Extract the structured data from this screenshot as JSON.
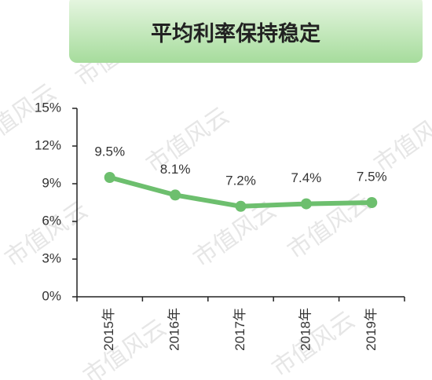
{
  "chart_data": {
    "type": "line",
    "title": "平均利率保持稳定",
    "watermark": "市值风云",
    "categories": [
      "2015年",
      "2016年",
      "2017年",
      "2018年",
      "2019年"
    ],
    "series": [
      {
        "color": "#6dbf6e",
        "values": [
          9.5,
          8.1,
          7.2,
          7.4,
          7.5
        ],
        "value_labels": [
          "9.5%",
          "8.1%",
          "7.2%",
          "7.4%",
          "7.5%"
        ]
      }
    ],
    "ylim": [
      0,
      15
    ],
    "yticks": [
      {
        "value": 0,
        "label": "0%"
      },
      {
        "value": 3,
        "label": "3%"
      },
      {
        "value": 6,
        "label": "6%"
      },
      {
        "value": 9,
        "label": "9%"
      },
      {
        "value": 12,
        "label": "12%"
      },
      {
        "value": 15,
        "label": "15%"
      }
    ]
  }
}
